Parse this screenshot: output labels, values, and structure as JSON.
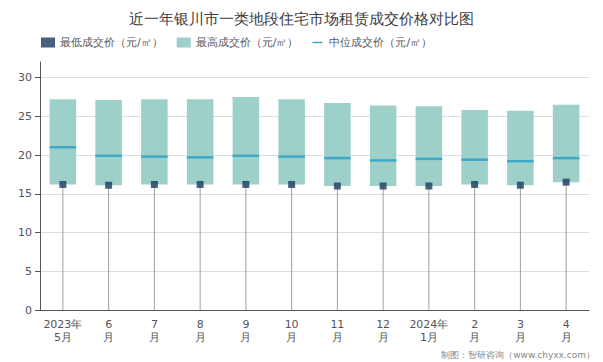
{
  "chart_data": {
    "type": "floating_bar",
    "title": "近一年银川市一类地段住宅市场租赁成交价格对比图",
    "categories": [
      "2023年\n5月",
      "6\n月",
      "7\n月",
      "8\n月",
      "9\n月",
      "10\n月",
      "11\n月",
      "12\n月",
      "2024年\n1月",
      "2\n月",
      "3\n月",
      "4\n月"
    ],
    "series": [
      {
        "name": "最低成交价（元/㎡）",
        "type": "scatter",
        "marker": "square",
        "color": "#1B3A5C",
        "values": [
          16.2,
          16.1,
          16.2,
          16.2,
          16.2,
          16.2,
          16.0,
          16.0,
          16.0,
          16.2,
          16.1,
          16.5
        ]
      },
      {
        "name": "最高成交价（元/㎡）",
        "type": "bar",
        "color": "#9ED0CA",
        "values": [
          27.2,
          27.1,
          27.2,
          27.2,
          27.5,
          27.2,
          26.7,
          26.4,
          26.3,
          25.8,
          25.7,
          26.5
        ]
      },
      {
        "name": "中位成交价（元/㎡）",
        "type": "line",
        "line_style": "solid",
        "color": "#3EA8C8",
        "values": [
          21.0,
          19.9,
          19.8,
          19.7,
          19.9,
          19.8,
          19.6,
          19.3,
          19.5,
          19.4,
          19.2,
          19.6
        ]
      }
    ],
    "ylim": [
      0,
      32
    ],
    "yticks": [
      0,
      5,
      10,
      15,
      20,
      25,
      30
    ],
    "grid": true,
    "legend": "upper left",
    "annotations": [
      "制图：智研咨询（www.chyxx.com）"
    ]
  }
}
